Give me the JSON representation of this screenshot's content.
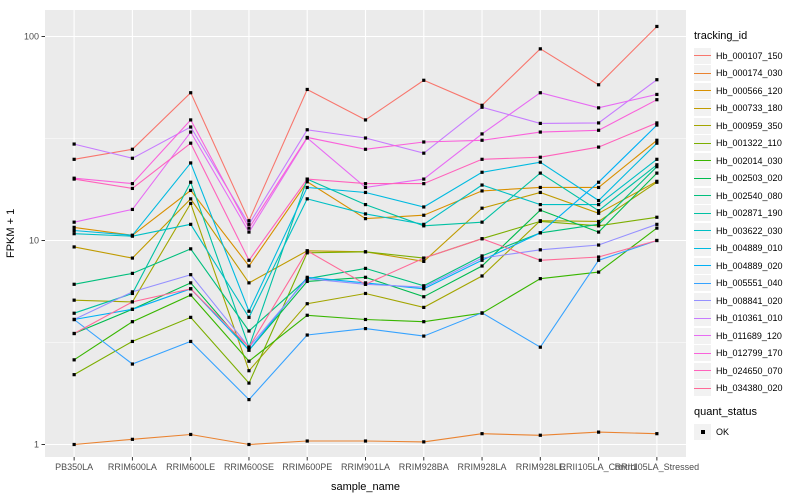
{
  "figure": {
    "x_axis_title": "sample_name",
    "y_axis_title": "FPKM + 1",
    "legend_title": "tracking_id",
    "quant_legend_title": "quant_status",
    "quant_legend_value": "OK"
  },
  "chart_data": {
    "type": "line",
    "title": "",
    "xlabel": "sample_name",
    "ylabel": "FPKM + 1",
    "y_scale": "log10",
    "y_ticks": [
      "1",
      "10",
      "100"
    ],
    "y_minor_ticks": [
      3.1623,
      31.623
    ],
    "ylim": [
      0.85,
      135
    ],
    "grid": true,
    "legend_position": "right",
    "panel_bg": "#EBEBEB",
    "grid_color": "#FFFFFF",
    "tick_color": "#333333",
    "tick_label_color": "#4D4D4D",
    "point_shape": "filled-square",
    "point_color": "#000000",
    "categories": [
      "PB350LA",
      "RRIM600LA",
      "RRIM600LE",
      "RRIM600SE",
      "RRIM600PE",
      "RRIM901LA",
      "RRIM928BA",
      "RRIM928LA",
      "RRIM928LE",
      "RRII105LA_Control",
      "RRII105LA_Stressed"
    ],
    "series": [
      {
        "name": "Hb_000107_150",
        "color": "#F8766D",
        "values": [
          25,
          28,
          53,
          12.5,
          55,
          39,
          61,
          46,
          87,
          58,
          112
        ]
      },
      {
        "name": "Hb_000174_030",
        "color": "#EA8331",
        "values": [
          1.0,
          1.06,
          1.12,
          1.0,
          1.04,
          1.04,
          1.03,
          1.13,
          1.11,
          1.15,
          1.13
        ]
      },
      {
        "name": "Hb_000566_120",
        "color": "#D89000",
        "values": [
          11.6,
          10.6,
          17.6,
          7.5,
          19.4,
          12.8,
          13.3,
          17.5,
          18.2,
          18.2,
          31
        ]
      },
      {
        "name": "Hb_000733_180",
        "color": "#C09B00",
        "values": [
          9.3,
          8.2,
          16.0,
          6.2,
          8.9,
          8.8,
          7.9,
          14.4,
          17.2,
          13.6,
          19.5
        ]
      },
      {
        "name": "Hb_000959_350",
        "color": "#A3A500",
        "values": [
          5.1,
          5.0,
          15.2,
          2.3,
          4.9,
          5.5,
          4.7,
          6.7,
          12.5,
          12.4,
          19.3
        ]
      },
      {
        "name": "Hb_001322_110",
        "color": "#7CAE00",
        "values": [
          2.2,
          3.2,
          4.2,
          2.0,
          8.7,
          8.8,
          8.2,
          10.2,
          12.4,
          11.8,
          13.0
        ]
      },
      {
        "name": "Hb_002014_030",
        "color": "#39B600",
        "values": [
          2.6,
          4.0,
          5.4,
          2.56,
          4.3,
          4.1,
          4.0,
          4.4,
          6.5,
          7.0,
          11.5
        ]
      },
      {
        "name": "Hb_002503_020",
        "color": "#00BB4E",
        "values": [
          3.5,
          4.6,
          6.2,
          2.9,
          6.3,
          6.6,
          5.3,
          7.5,
          14.1,
          11.0,
          21.4
        ]
      },
      {
        "name": "Hb_002540_080",
        "color": "#00BF7D",
        "values": [
          6.1,
          6.9,
          9.1,
          3.6,
          6.5,
          7.3,
          6.0,
          8.4,
          10.9,
          12.0,
          23.0
        ]
      },
      {
        "name": "Hb_002871_190",
        "color": "#00C1A3",
        "values": [
          4.4,
          5.5,
          19.3,
          3.0,
          20.0,
          15.0,
          11.8,
          12.3,
          21.4,
          14.0,
          23.5
        ]
      },
      {
        "name": "Hb_003622_030",
        "color": "#00BFC4",
        "values": [
          10.8,
          10.5,
          12.0,
          4.2,
          16.0,
          13.5,
          12.0,
          18.7,
          15.0,
          15.0,
          25.0
        ]
      },
      {
        "name": "Hb_004889_010",
        "color": "#00BAE0",
        "values": [
          11.2,
          10.6,
          24.0,
          4.5,
          18.2,
          17.2,
          14.6,
          21.6,
          24.2,
          15.7,
          30.0
        ]
      },
      {
        "name": "Hb_004889_020",
        "color": "#00B0F6",
        "values": [
          4.1,
          4.6,
          5.8,
          2.9,
          6.6,
          6.2,
          5.8,
          8.0,
          10.9,
          19.3,
          36.8
        ]
      },
      {
        "name": "Hb_005551_040",
        "color": "#35A2FF",
        "values": [
          4.1,
          2.48,
          3.2,
          1.66,
          3.44,
          3.7,
          3.4,
          4.42,
          3.0,
          8.0,
          10.0
        ]
      },
      {
        "name": "Hb_008841_020",
        "color": "#9590FF",
        "values": [
          4.1,
          5.6,
          6.8,
          3.0,
          6.5,
          6.1,
          5.9,
          8.2,
          9.0,
          9.5,
          12.0
        ]
      },
      {
        "name": "Hb_010361_010",
        "color": "#C77CFF",
        "values": [
          29.7,
          25.3,
          36.0,
          12.0,
          34.9,
          31.8,
          26.8,
          45.0,
          37.5,
          37.7,
          61.4
        ]
      },
      {
        "name": "Hb_011689_120",
        "color": "#E76BF3",
        "values": [
          12.3,
          14.2,
          34.0,
          11.0,
          31.8,
          18.2,
          20.0,
          33.3,
          53.0,
          44.7,
          52.0
        ]
      },
      {
        "name": "Hb_012799_170",
        "color": "#FA62DB",
        "values": [
          20.2,
          19.0,
          39.0,
          11.5,
          32.0,
          28.0,
          30.4,
          31.0,
          34.0,
          34.7,
          49.0
        ]
      },
      {
        "name": "Hb_024650_070",
        "color": "#FF62BC",
        "values": [
          20.0,
          18.0,
          30.0,
          8.0,
          20.0,
          19.0,
          19.0,
          25.0,
          25.6,
          28.7,
          37.7
        ]
      },
      {
        "name": "Hb_034380_020",
        "color": "#FF6A98",
        "values": [
          3.5,
          5.0,
          5.8,
          3.0,
          8.9,
          6.1,
          8.2,
          10.2,
          8.0,
          8.3,
          10.0
        ]
      }
    ]
  }
}
